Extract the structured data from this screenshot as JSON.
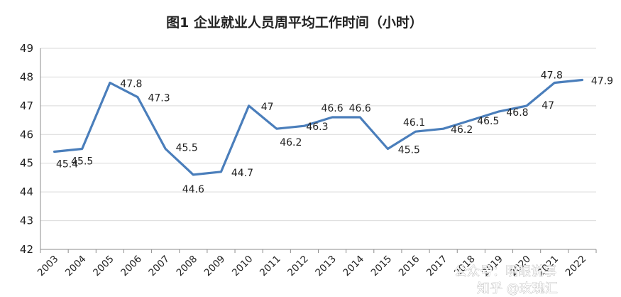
{
  "chart_data": {
    "type": "line",
    "title": "图1 企业就业人员周平均工作时间（小时）",
    "xlabel": "",
    "ylabel": "",
    "ylim": [
      42,
      49
    ],
    "yticks": [
      42,
      43,
      44,
      45,
      46,
      47,
      48,
      49
    ],
    "grid": true,
    "legend": "none",
    "categories": [
      "2003",
      "2004",
      "2005",
      "2006",
      "2007",
      "2008",
      "2009",
      "2010",
      "2011",
      "2012",
      "2013",
      "2014",
      "2015",
      "2016",
      "2017",
      "2018",
      "2019",
      "2020",
      "2021",
      "2022"
    ],
    "series": [
      {
        "name": "",
        "color": "#4a7ebb",
        "values": [
          45.4,
          45.5,
          47.8,
          47.3,
          45.5,
          44.6,
          44.7,
          47,
          46.2,
          46.3,
          46.6,
          46.6,
          45.5,
          46.1,
          46.2,
          46.5,
          46.8,
          47,
          47.8,
          47.9
        ]
      }
    ]
  },
  "watermark": {
    "line1": "公众号：明眼说事",
    "line2": "知乎 @玫瑰汇"
  }
}
